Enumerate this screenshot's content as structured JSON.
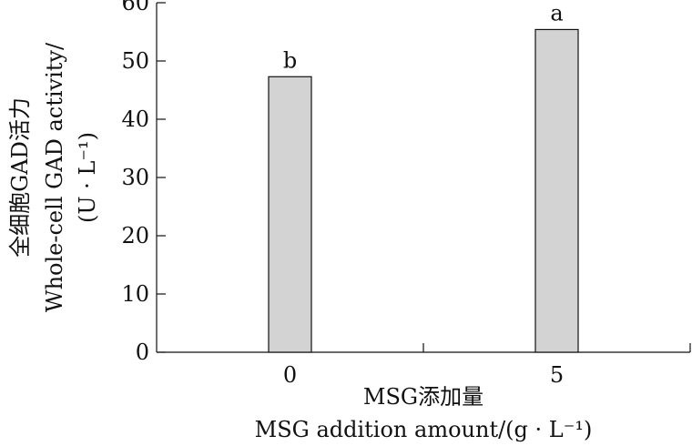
{
  "chart_data": {
    "type": "bar",
    "categories": [
      "0",
      "5"
    ],
    "values": [
      47.3,
      55.4
    ],
    "significance_letters": [
      "b",
      "a"
    ],
    "ylim": [
      0,
      60
    ],
    "yticks": [
      "0",
      "10",
      "20",
      "30",
      "40",
      "50",
      "60"
    ],
    "xlabel_lines": [
      "MSG添加量",
      "MSG addition amount/(g · L⁻¹)"
    ],
    "ylabel_lines": [
      "全细胞GAD活力",
      "Whole-cell GAD activity/",
      "(U · L⁻¹)"
    ],
    "grid": false,
    "legend": "none",
    "bar_color": "#d3d3d3"
  }
}
